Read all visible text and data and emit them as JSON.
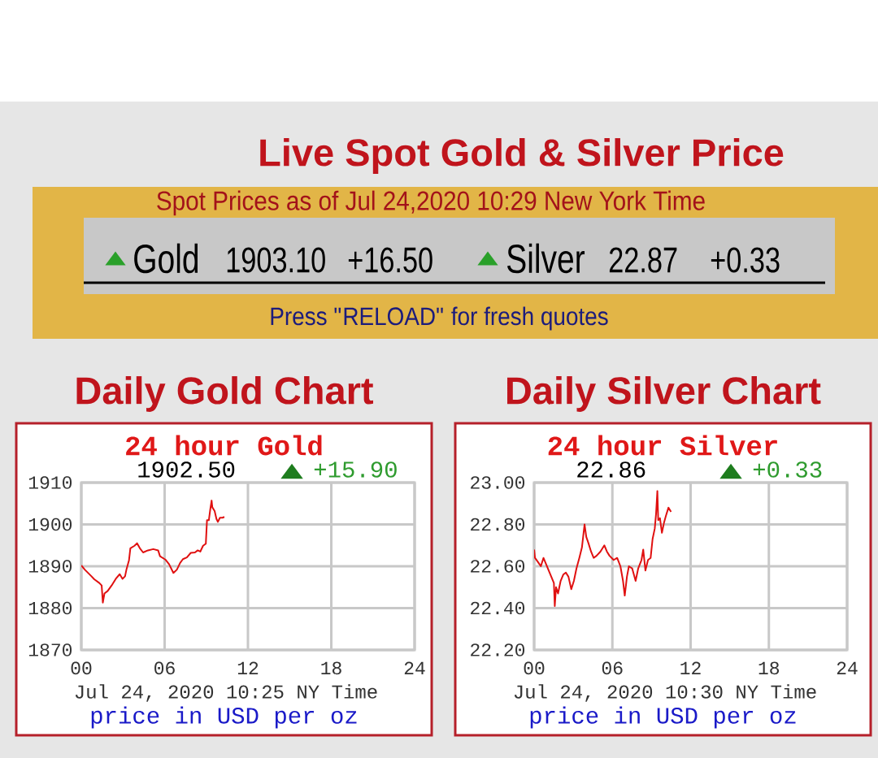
{
  "chart_data": [
    {
      "type": "other",
      "title": "Live Spot Gold & Silver Price",
      "annotations": [
        "Spot Prices as of Jul 24,2020 10:29 New York Time",
        "▲",
        "Gold",
        "1903.10",
        "+16.50",
        "▲",
        "Silver",
        "22.87",
        "+0.33",
        "Press \"RELOAD\" for fresh quotes"
      ]
    },
    {
      "type": "line",
      "title": "Daily Gold Chart",
      "subtitle": "24 hour Gold",
      "xlabel": "Jul 24, 2020 10:25 NY Time",
      "annotations": [
        "1902.50",
        "▲",
        "+15.90",
        "price in USD per oz"
      ],
      "color": "#e01010",
      "grid": true,
      "marker": "none",
      "line_style": "solid",
      "xlim": [
        "2020-07-24T00:00",
        "2020-07-25T00:00"
      ],
      "xticks": [
        {
          "value": "2020-07-24T00:00",
          "label": "00"
        },
        {
          "value": "2020-07-24T06:00",
          "label": "06"
        },
        {
          "value": "2020-07-24T12:00",
          "label": "12"
        },
        {
          "value": "2020-07-24T18:00",
          "label": "18"
        },
        {
          "value": "2020-07-25T00:00",
          "label": "24"
        }
      ],
      "ylim": [
        1870,
        1910
      ],
      "yticks": [
        1870,
        1880,
        1890,
        1900,
        1910
      ],
      "x": [
        "2020-07-24T00:00",
        "2020-07-24T00:15",
        "2020-07-24T00:44",
        "2020-07-24T00:56",
        "2020-07-24T01:18",
        "2020-07-24T01:28",
        "2020-07-24T01:33",
        "2020-07-24T01:40",
        "2020-07-24T01:54",
        "2020-07-24T02:11",
        "2020-07-24T02:29",
        "2020-07-24T02:46",
        "2020-07-24T02:58",
        "2020-07-24T03:09",
        "2020-07-24T03:15",
        "2020-07-24T03:26",
        "2020-07-24T03:32",
        "2020-07-24T03:50",
        "2020-07-24T04:01",
        "2020-07-24T04:13",
        "2020-07-24T04:27",
        "2020-07-24T04:48",
        "2020-07-24T05:11",
        "2020-07-24T05:32",
        "2020-07-24T05:40",
        "2020-07-24T06:03",
        "2020-07-24T06:19",
        "2020-07-24T06:38",
        "2020-07-24T06:53",
        "2020-07-24T07:07",
        "2020-07-24T07:19",
        "2020-07-24T07:36",
        "2020-07-24T07:53",
        "2020-07-24T08:11",
        "2020-07-24T08:23",
        "2020-07-24T08:34",
        "2020-07-24T08:46",
        "2020-07-24T08:58",
        "2020-07-24T09:03",
        "2020-07-24T09:11",
        "2020-07-24T09:17",
        "2020-07-24T09:23",
        "2020-07-24T09:26",
        "2020-07-24T09:36",
        "2020-07-24T09:44",
        "2020-07-24T09:50",
        "2020-07-24T09:59",
        "2020-07-24T10:10",
        "2020-07-24T10:18"
      ],
      "values": [
        1890.2,
        1889.2,
        1887.6,
        1886.9,
        1886.0,
        1885.4,
        1881.3,
        1883.5,
        1884.1,
        1885.4,
        1887.0,
        1888.1,
        1887.0,
        1887.6,
        1889.2,
        1891.4,
        1894.3,
        1894.9,
        1895.5,
        1894.3,
        1893.3,
        1893.8,
        1894.1,
        1893.8,
        1892.4,
        1891.6,
        1890.5,
        1888.4,
        1889.2,
        1890.8,
        1891.7,
        1892.1,
        1893.2,
        1893.3,
        1893.8,
        1893.5,
        1894.9,
        1895.4,
        1901.0,
        1901.0,
        1903.5,
        1905.7,
        1904.1,
        1903.2,
        1901.3,
        1900.6,
        1901.6,
        1901.6,
        1901.8
      ]
    },
    {
      "type": "line",
      "title": "Daily Silver Chart",
      "subtitle": "24 hour Silver",
      "xlabel": "Jul 24, 2020 10:30 NY Time",
      "annotations": [
        "22.86",
        "▲",
        "+0.33",
        "price in USD per oz"
      ],
      "color": "#e01010",
      "grid": true,
      "marker": "none",
      "line_style": "solid",
      "xlim": [
        "2020-07-24T00:00",
        "2020-07-25T00:00"
      ],
      "xticks": [
        {
          "value": "2020-07-24T00:00",
          "label": "00"
        },
        {
          "value": "2020-07-24T06:00",
          "label": "06"
        },
        {
          "value": "2020-07-24T12:00",
          "label": "12"
        },
        {
          "value": "2020-07-24T18:00",
          "label": "18"
        },
        {
          "value": "2020-07-25T00:00",
          "label": "24"
        }
      ],
      "ylim": [
        22.2,
        23.0
      ],
      "yticks": [
        {
          "value": 22.2,
          "label": "22.20"
        },
        {
          "value": 22.4,
          "label": "22.40"
        },
        {
          "value": 22.6,
          "label": "22.60"
        },
        {
          "value": 22.8,
          "label": "22.80"
        },
        {
          "value": 23.0,
          "label": "23.00"
        }
      ],
      "x": [
        "2020-07-24T00:00",
        "2020-07-24T00:04",
        "2020-07-24T00:18",
        "2020-07-24T00:31",
        "2020-07-24T00:43",
        "2020-07-24T00:55",
        "2020-07-24T01:07",
        "2020-07-24T01:19",
        "2020-07-24T01:31",
        "2020-07-24T01:35",
        "2020-07-24T01:41",
        "2020-07-24T01:50",
        "2020-07-24T02:02",
        "2020-07-24T02:14",
        "2020-07-24T02:26",
        "2020-07-24T02:38",
        "2020-07-24T02:51",
        "2020-07-24T03:03",
        "2020-07-24T03:15",
        "2020-07-24T03:28",
        "2020-07-24T03:40",
        "2020-07-24T03:52",
        "2020-07-24T04:00",
        "2020-07-24T04:10",
        "2020-07-24T04:22",
        "2020-07-24T04:34",
        "2020-07-24T04:47",
        "2020-07-24T05:05",
        "2020-07-24T05:23",
        "2020-07-24T05:35",
        "2020-07-24T05:47",
        "2020-07-24T06:06",
        "2020-07-24T06:22",
        "2020-07-24T06:37",
        "2020-07-24T06:49",
        "2020-07-24T06:57",
        "2020-07-24T07:07",
        "2020-07-24T07:16",
        "2020-07-24T07:31",
        "2020-07-24T07:47",
        "2020-07-24T07:59",
        "2020-07-24T08:14",
        "2020-07-24T08:22",
        "2020-07-24T08:32",
        "2020-07-24T08:44",
        "2020-07-24T08:56",
        "2020-07-24T09:05",
        "2020-07-24T09:15",
        "2020-07-24T09:21",
        "2020-07-24T09:27",
        "2020-07-24T09:31",
        "2020-07-24T09:39",
        "2020-07-24T09:48",
        "2020-07-24T09:58",
        "2020-07-24T10:06",
        "2020-07-24T10:18",
        "2020-07-24T10:30"
      ],
      "values": [
        22.68,
        22.64,
        22.62,
        22.6,
        22.64,
        22.61,
        22.58,
        22.55,
        22.52,
        22.41,
        22.5,
        22.47,
        22.53,
        22.56,
        22.57,
        22.55,
        22.49,
        22.53,
        22.59,
        22.64,
        22.69,
        22.8,
        22.74,
        22.71,
        22.67,
        22.64,
        22.65,
        22.67,
        22.7,
        22.67,
        22.65,
        22.63,
        22.64,
        22.6,
        22.53,
        22.46,
        22.55,
        22.6,
        22.59,
        22.53,
        22.59,
        22.63,
        22.68,
        22.58,
        22.63,
        22.64,
        22.73,
        22.78,
        22.85,
        22.96,
        22.82,
        22.83,
        22.76,
        22.81,
        22.84,
        22.88,
        22.86
      ]
    }
  ]
}
